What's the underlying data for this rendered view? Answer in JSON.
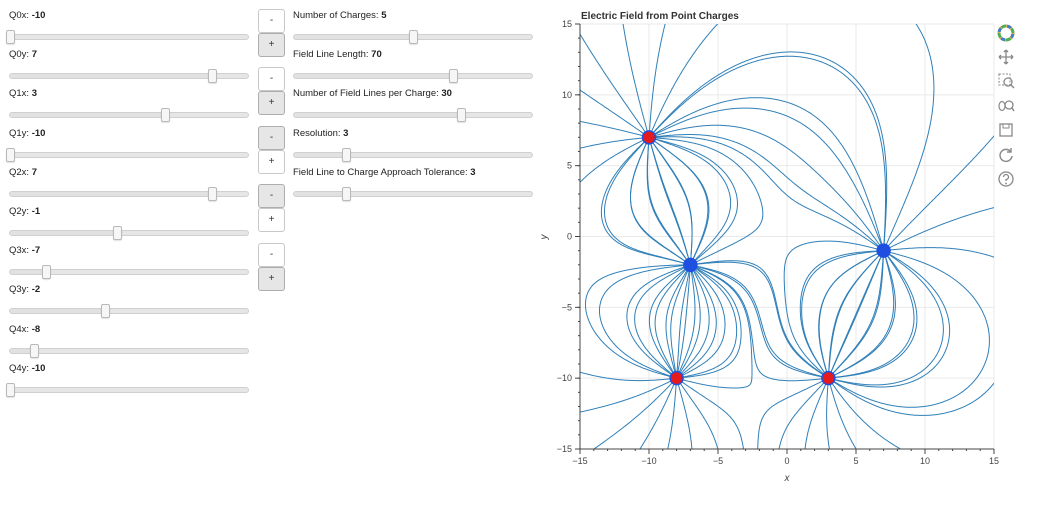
{
  "sliders_left": [
    {
      "label": "Q0x: ",
      "value": "-10",
      "frac": 0.0
    },
    {
      "label": "Q0y: ",
      "value": "7",
      "frac": 0.85
    },
    {
      "label": "Q1x: ",
      "value": "3",
      "frac": 0.65
    },
    {
      "label": "Q1y: ",
      "value": "-10",
      "frac": 0.0
    },
    {
      "label": "Q2x: ",
      "value": "7",
      "frac": 0.85
    },
    {
      "label": "Q2y: ",
      "value": "-1",
      "frac": 0.45
    },
    {
      "label": "Q3x: ",
      "value": "-7",
      "frac": 0.15
    },
    {
      "label": "Q3y: ",
      "value": "-2",
      "frac": 0.4
    },
    {
      "label": "Q4x: ",
      "value": "-8",
      "frac": 0.1
    },
    {
      "label": "Q4y: ",
      "value": "-10",
      "frac": 0.0
    }
  ],
  "sliders_right": [
    {
      "label": "Number of Charges: ",
      "value": "5",
      "frac": 0.5
    },
    {
      "label": "Field Line Length: ",
      "value": "70",
      "frac": 0.67
    },
    {
      "label": "Number of Field Lines per Charge: ",
      "value": "30",
      "frac": 0.7
    },
    {
      "label": "Resolution: ",
      "value": "3",
      "frac": 0.22
    },
    {
      "label": "Field Line to Charge Approach Tolerance: ",
      "value": "3",
      "frac": 0.22
    }
  ],
  "buttons": [
    {
      "minus": "-",
      "plus": "+",
      "active": "plus"
    },
    {
      "minus": "-",
      "plus": "+",
      "active": "plus"
    },
    {
      "minus": "-",
      "plus": "+",
      "active": "minus"
    },
    {
      "minus": "-",
      "plus": "+",
      "active": "minus"
    },
    {
      "minus": "-",
      "plus": "+",
      "active": "plus"
    }
  ],
  "toolbar": [
    "bokeh-logo-icon",
    "pan-icon",
    "box-zoom-icon",
    "wheel-zoom-icon",
    "save-icon",
    "reset-icon",
    "help-icon"
  ],
  "colors": {
    "line": "#2f7fb8",
    "positive": "#e41a1c",
    "negative": "#1f4fe0",
    "grid": "#e9e9e9"
  },
  "chart_data": {
    "type": "scatter",
    "title": "Electric Field from Point Charges",
    "xlabel": "x",
    "ylabel": "y",
    "xlim": [
      -15,
      15
    ],
    "ylim": [
      -15,
      15
    ],
    "xticks": [
      -15,
      -10,
      -5,
      0,
      5,
      10,
      15
    ],
    "yticks": [
      -15,
      -10,
      -5,
      0,
      5,
      10,
      15
    ],
    "grid": true,
    "charges": [
      {
        "x": -10,
        "y": 7,
        "sign": "positive"
      },
      {
        "x": 3,
        "y": -10,
        "sign": "positive"
      },
      {
        "x": 7,
        "y": -1,
        "sign": "negative"
      },
      {
        "x": -7,
        "y": -2,
        "sign": "negative"
      },
      {
        "x": -8,
        "y": -10,
        "sign": "positive"
      }
    ]
  }
}
